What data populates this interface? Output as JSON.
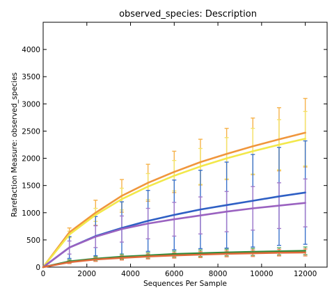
{
  "chart_data": {
    "type": "line",
    "title": "observed_species: Description",
    "xlabel": "Sequences Per Sample",
    "ylabel": "Rarefaction Measure: observed_species",
    "xlim": [
      0,
      13000
    ],
    "ylim": [
      0,
      4500
    ],
    "x_ticks": [
      0,
      2000,
      4000,
      6000,
      8000,
      10000,
      12000
    ],
    "y_ticks": [
      0,
      500,
      1000,
      1500,
      2000,
      2500,
      3000,
      3500,
      4000
    ],
    "grid": false,
    "x": [
      0,
      1200,
      2400,
      3600,
      4800,
      6000,
      7200,
      8400,
      9600,
      10800,
      12000
    ],
    "series": [
      {
        "color": "#f0963c",
        "errcolor": "#f6b24a",
        "values": [
          0,
          640,
          1000,
          1310,
          1550,
          1750,
          1930,
          2080,
          2220,
          2350,
          2470
        ],
        "err": [
          0,
          80,
          230,
          300,
          340,
          380,
          420,
          470,
          520,
          580,
          630
        ]
      },
      {
        "color": "#f2e84a",
        "errcolor": "#f4e36a",
        "values": [
          0,
          600,
          960,
          1250,
          1480,
          1680,
          1850,
          2000,
          2130,
          2250,
          2360
        ],
        "err": [
          0,
          60,
          120,
          200,
          240,
          280,
          330,
          380,
          420,
          460,
          500
        ]
      },
      {
        "color": "#2e5fc4",
        "errcolor": "#3a72cc",
        "values": [
          0,
          360,
          570,
          720,
          850,
          960,
          1060,
          1140,
          1220,
          1300,
          1370
        ],
        "err": [
          0,
          200,
          360,
          480,
          560,
          640,
          720,
          790,
          850,
          900,
          950
        ]
      },
      {
        "color": "#9a62c0",
        "errcolor": "#a27acb",
        "values": [
          0,
          360,
          560,
          700,
          800,
          880,
          950,
          1020,
          1080,
          1130,
          1180
        ],
        "err": [
          0,
          120,
          200,
          240,
          280,
          310,
          340,
          370,
          400,
          420,
          440
        ]
      },
      {
        "color": "#2f8a3a",
        "errcolor": "#58a85e",
        "values": [
          0,
          105,
          155,
          190,
          215,
          240,
          255,
          270,
          280,
          290,
          300
        ],
        "err": [
          0,
          30,
          40,
          45,
          50,
          55,
          60,
          60,
          65,
          65,
          70
        ]
      },
      {
        "color": "#e06a3a",
        "errcolor": "#ec8a5a",
        "values": [
          0,
          90,
          140,
          170,
          195,
          215,
          230,
          245,
          255,
          265,
          270
        ],
        "err": [
          0,
          25,
          35,
          40,
          45,
          50,
          55,
          55,
          60,
          60,
          65
        ]
      }
    ]
  }
}
